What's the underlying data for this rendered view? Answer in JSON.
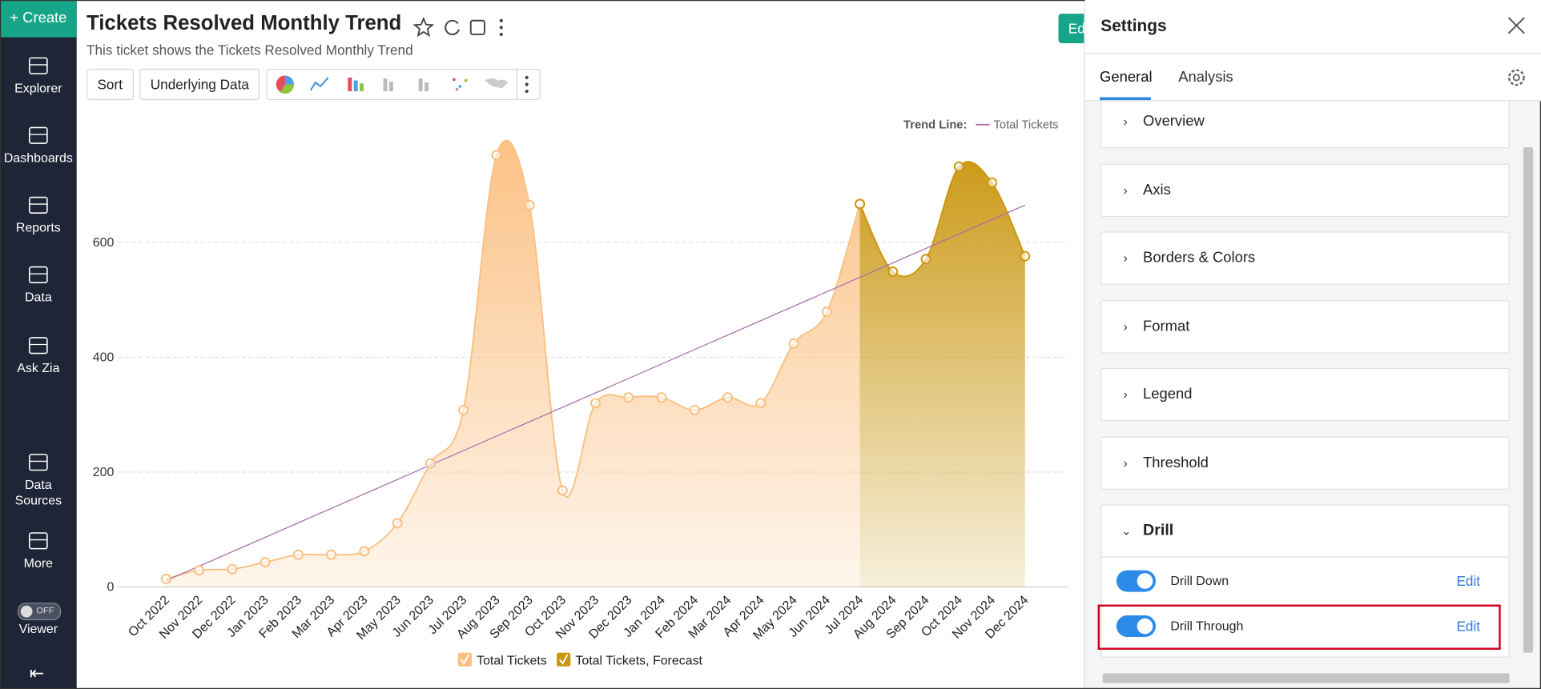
{
  "sidebar": {
    "create": "Create",
    "items": [
      "Explorer",
      "Dashboards",
      "Reports",
      "Data",
      "Ask Zia",
      "Data Sources",
      "More"
    ],
    "viewer_toggle": "OFF",
    "viewer": "Viewer"
  },
  "header": {
    "title": "Tickets Resolved Monthly Trend",
    "subtitle": "This ticket shows the Tickets Resolved Monthly Trend",
    "buttons": [
      "Sort",
      "Underlying Data"
    ],
    "edit_button": "Ed"
  },
  "chart_data": {
    "type": "area",
    "categories": [
      "Oct 2022",
      "Nov 2022",
      "Dec 2022",
      "Jan 2023",
      "Feb 2023",
      "Mar 2023",
      "Apr 2023",
      "May 2023",
      "Jun 2023",
      "Jul 2023",
      "Aug 2023",
      "Sep 2023",
      "Oct 2023",
      "Nov 2023",
      "Dec 2023",
      "Jan 2024",
      "Feb 2024",
      "Mar 2024",
      "Apr 2024",
      "May 2024",
      "Jun 2024",
      "Jul 2024",
      "Aug 2024",
      "Sep 2024",
      "Oct 2024",
      "Nov 2024",
      "Dec 2024"
    ],
    "series": [
      {
        "name": "Total Tickets",
        "color": "#fbbf80",
        "values": [
          14,
          29,
          31,
          43,
          56,
          56,
          62,
          111,
          215,
          308,
          752,
          665,
          168,
          320,
          330,
          330,
          308,
          330,
          320,
          424,
          479,
          667,
          null,
          null,
          null,
          null,
          null
        ]
      },
      {
        "name": "Total Tickets, Forecast",
        "color": "#c9960f",
        "values": [
          null,
          null,
          null,
          null,
          null,
          null,
          null,
          null,
          null,
          null,
          null,
          null,
          null,
          null,
          null,
          null,
          null,
          null,
          null,
          null,
          null,
          667,
          549,
          571,
          732,
          704,
          576
        ]
      }
    ],
    "trend_line": {
      "label": "Trend Line:",
      "name": "Total Tickets",
      "color": "#a86ca8",
      "values": [
        11,
        665
      ]
    },
    "ylim": [
      0,
      800
    ],
    "yticks": [
      0,
      200,
      400,
      600
    ],
    "grid": true,
    "legend": "bottom"
  },
  "settings": {
    "title": "Settings",
    "tabs": [
      "General",
      "Analysis"
    ],
    "sections": [
      "Overview",
      "Axis",
      "Borders & Colors",
      "Format",
      "Legend",
      "Threshold"
    ],
    "drill": {
      "title": "Drill",
      "options": [
        {
          "label": "Drill Down",
          "action": "Edit"
        },
        {
          "label": "Drill Through",
          "action": "Edit"
        }
      ]
    }
  }
}
